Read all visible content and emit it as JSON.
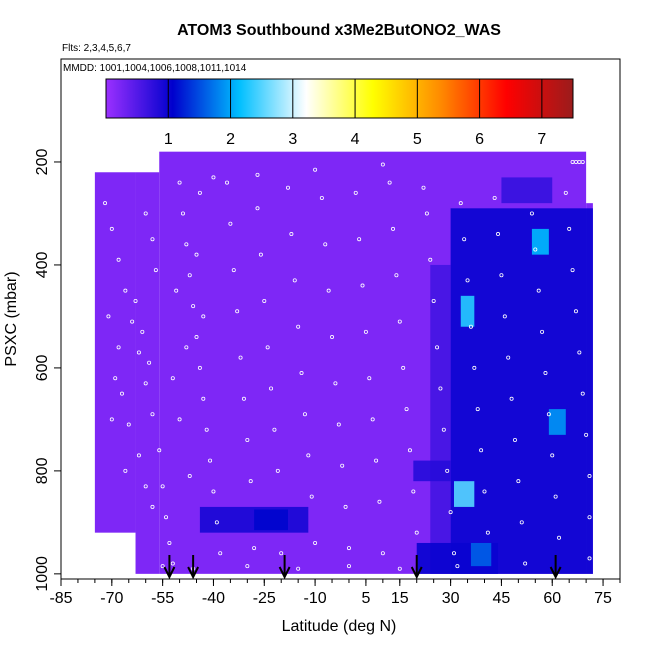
{
  "chart_data": {
    "type": "heatmap",
    "title": "ATOM3 Southbound x3Me2ButONO2_WAS",
    "subtitle_flights": "Flts: 2,3,4,5,6,7",
    "subtitle_dates": "MMDD: 1001,1004,1006,1008,1011,1014",
    "xlabel": "Latitude (deg N)",
    "ylabel": "PSXC (mbar)",
    "xlim": [
      -85,
      80
    ],
    "ylim": [
      1010,
      0
    ],
    "x_ticks": [
      -85,
      -70,
      -55,
      -40,
      -25,
      -10,
      5,
      15,
      30,
      45,
      60,
      75
    ],
    "x_tick_labels": [
      "-85",
      "-70",
      "-55",
      "-40",
      "-25",
      "-10",
      "5",
      "15",
      "30",
      "45",
      "60",
      "75"
    ],
    "y_ticks": [
      200,
      400,
      600,
      800,
      1000
    ],
    "y_tick_labels": [
      "200",
      "400",
      "600",
      "800",
      "1000"
    ],
    "colorbar": {
      "ticks": [
        1,
        2,
        3,
        4,
        5,
        6,
        7
      ],
      "tick_labels": [
        "1",
        "2",
        "3",
        "4",
        "5",
        "6",
        "7"
      ],
      "range": [
        0,
        7.5
      ],
      "colors": [
        "#9b30ff",
        "#0000cd",
        "#00bfff",
        "#ffffff",
        "#ffff00",
        "#ff8c00",
        "#ff0000",
        "#9b1c1c"
      ]
    },
    "data_extent": {
      "pressure_top": 180,
      "latitude_min": -75,
      "latitude_max": 72,
      "columns": [
        {
          "lat_min": -75,
          "lat_max": -63,
          "p_top": 220,
          "p_bottom": 920
        },
        {
          "lat_min": -63,
          "lat_max": -56,
          "p_top": 220,
          "p_bottom": 1000
        },
        {
          "lat_min": -56,
          "lat_max": 70,
          "p_top": 180,
          "p_bottom": 1000
        },
        {
          "lat_min": 70,
          "lat_max": 72,
          "p_top": 280,
          "p_bottom": 1000
        }
      ]
    },
    "background_value": 0.2,
    "regions": [
      {
        "lat_min": 30,
        "lat_max": 72,
        "p_min": 290,
        "p_max": 1000,
        "value": 1.0
      },
      {
        "lat_min": 24,
        "lat_max": 30,
        "p_min": 400,
        "p_max": 1000,
        "value": 0.6
      },
      {
        "lat_min": 19,
        "lat_max": 30,
        "p_min": 780,
        "p_max": 820,
        "value": 0.8
      },
      {
        "lat_min": 20,
        "lat_max": 44,
        "p_min": 940,
        "p_max": 1000,
        "value": 1.0
      },
      {
        "lat_min": 45,
        "lat_max": 60,
        "p_min": 230,
        "p_max": 280,
        "value": 0.7
      },
      {
        "lat_min": -44,
        "lat_max": -12,
        "p_min": 870,
        "p_max": 920,
        "value": 0.9
      },
      {
        "lat_min": -28,
        "lat_max": -18,
        "p_min": 875,
        "p_max": 915,
        "value": 1.1
      },
      {
        "lat_min": 33,
        "lat_max": 37,
        "p_min": 460,
        "p_max": 520,
        "value": 2.3
      },
      {
        "lat_min": 54,
        "lat_max": 59,
        "p_min": 330,
        "p_max": 380,
        "value": 2.1
      },
      {
        "lat_min": 59,
        "lat_max": 64,
        "p_min": 680,
        "p_max": 730,
        "value": 1.9
      },
      {
        "lat_min": 31,
        "lat_max": 37,
        "p_min": 820,
        "p_max": 870,
        "value": 2.5
      },
      {
        "lat_min": 36,
        "lat_max": 42,
        "p_min": 940,
        "p_max": 985,
        "value": 1.6
      }
    ],
    "sample_points": [
      [
        -72,
        280
      ],
      [
        -70,
        330
      ],
      [
        -68,
        390
      ],
      [
        -66,
        450
      ],
      [
        -64,
        510
      ],
      [
        -62,
        570
      ],
      [
        -60,
        630
      ],
      [
        -58,
        690
      ],
      [
        -56,
        760
      ],
      [
        -55,
        830
      ],
      [
        -54,
        890
      ],
      [
        -53,
        940
      ],
      [
        -52,
        980
      ],
      [
        -50,
        240
      ],
      [
        -49,
        300
      ],
      [
        -48,
        360
      ],
      [
        -47,
        420
      ],
      [
        -46,
        480
      ],
      [
        -45,
        540
      ],
      [
        -44,
        600
      ],
      [
        -43,
        660
      ],
      [
        -42,
        720
      ],
      [
        -41,
        780
      ],
      [
        -40,
        840
      ],
      [
        -39,
        900
      ],
      [
        -38,
        960
      ],
      [
        -60,
        300
      ],
      [
        -58,
        350
      ],
      [
        -57,
        410
      ],
      [
        -63,
        470
      ],
      [
        -61,
        530
      ],
      [
        -59,
        590
      ],
      [
        -67,
        650
      ],
      [
        -65,
        710
      ],
      [
        -62,
        770
      ],
      [
        -60,
        830
      ],
      [
        -58,
        870
      ],
      [
        -66,
        930
      ],
      [
        -64,
        970
      ],
      [
        -69,
        620
      ],
      [
        -71,
        500
      ],
      [
        -70,
        700
      ],
      [
        -68,
        560
      ],
      [
        -66,
        800
      ],
      [
        -52,
        620
      ],
      [
        -51,
        450
      ],
      [
        -50,
        700
      ],
      [
        -48,
        560
      ],
      [
        -47,
        810
      ],
      [
        -45,
        380
      ],
      [
        -44,
        260
      ],
      [
        -43,
        500
      ],
      [
        -36,
        240
      ],
      [
        -35,
        320
      ],
      [
        -34,
        410
      ],
      [
        -33,
        490
      ],
      [
        -32,
        580
      ],
      [
        -31,
        660
      ],
      [
        -30,
        740
      ],
      [
        -29,
        820
      ],
      [
        -28,
        950
      ],
      [
        -27,
        290
      ],
      [
        -26,
        380
      ],
      [
        -25,
        470
      ],
      [
        -24,
        560
      ],
      [
        -23,
        640
      ],
      [
        -22,
        720
      ],
      [
        -21,
        800
      ],
      [
        -20,
        960
      ],
      [
        -18,
        250
      ],
      [
        -17,
        340
      ],
      [
        -16,
        430
      ],
      [
        -15,
        520
      ],
      [
        -14,
        610
      ],
      [
        -13,
        690
      ],
      [
        -12,
        770
      ],
      [
        -11,
        850
      ],
      [
        -10,
        940
      ],
      [
        -8,
        270
      ],
      [
        -7,
        360
      ],
      [
        -6,
        450
      ],
      [
        -5,
        540
      ],
      [
        -4,
        630
      ],
      [
        -3,
        710
      ],
      [
        -2,
        790
      ],
      [
        -1,
        870
      ],
      [
        0,
        950
      ],
      [
        2,
        260
      ],
      [
        3,
        350
      ],
      [
        4,
        440
      ],
      [
        5,
        530
      ],
      [
        6,
        620
      ],
      [
        7,
        700
      ],
      [
        8,
        780
      ],
      [
        9,
        860
      ],
      [
        10,
        960
      ],
      [
        12,
        240
      ],
      [
        13,
        330
      ],
      [
        14,
        420
      ],
      [
        15,
        510
      ],
      [
        16,
        600
      ],
      [
        17,
        680
      ],
      [
        18,
        760
      ],
      [
        19,
        840
      ],
      [
        20,
        920
      ],
      [
        22,
        250
      ],
      [
        23,
        300
      ],
      [
        24,
        390
      ],
      [
        25,
        470
      ],
      [
        26,
        560
      ],
      [
        27,
        640
      ],
      [
        28,
        720
      ],
      [
        29,
        800
      ],
      [
        30,
        880
      ],
      [
        31,
        960
      ],
      [
        33,
        280
      ],
      [
        34,
        350
      ],
      [
        35,
        430
      ],
      [
        36,
        520
      ],
      [
        37,
        600
      ],
      [
        38,
        680
      ],
      [
        39,
        760
      ],
      [
        40,
        840
      ],
      [
        41,
        920
      ],
      [
        43,
        270
      ],
      [
        44,
        340
      ],
      [
        45,
        420
      ],
      [
        46,
        500
      ],
      [
        47,
        580
      ],
      [
        48,
        660
      ],
      [
        49,
        740
      ],
      [
        50,
        820
      ],
      [
        51,
        900
      ],
      [
        52,
        980
      ],
      [
        54,
        300
      ],
      [
        55,
        370
      ],
      [
        56,
        450
      ],
      [
        57,
        530
      ],
      [
        58,
        610
      ],
      [
        59,
        690
      ],
      [
        60,
        770
      ],
      [
        61,
        850
      ],
      [
        62,
        930
      ],
      [
        64,
        260
      ],
      [
        65,
        330
      ],
      [
        66,
        410
      ],
      [
        67,
        490
      ],
      [
        68,
        570
      ],
      [
        69,
        650
      ],
      [
        70,
        730
      ],
      [
        71,
        810
      ],
      [
        71,
        890
      ],
      [
        71,
        970
      ],
      [
        66,
        200
      ],
      [
        67,
        200
      ],
      [
        68,
        200
      ],
      [
        69,
        200
      ],
      [
        -40,
        230
      ],
      [
        -27,
        225
      ],
      [
        -10,
        215
      ],
      [
        10,
        205
      ],
      [
        -55,
        985
      ],
      [
        -46,
        990
      ],
      [
        -30,
        985
      ],
      [
        -15,
        990
      ],
      [
        0,
        985
      ],
      [
        15,
        990
      ],
      [
        32,
        985
      ]
    ],
    "flight_arrows_lat": [
      -53,
      -46,
      -19,
      20,
      61
    ]
  }
}
